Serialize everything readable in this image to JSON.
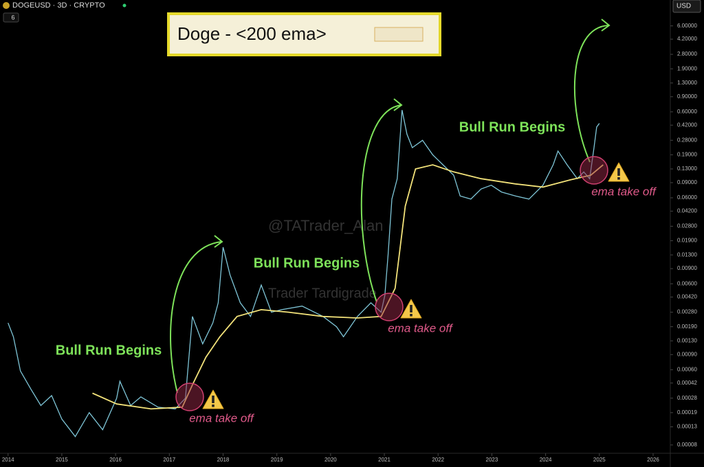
{
  "chart_data": {
    "type": "line",
    "header": "DOGEUSD · 3D · CRYPTO",
    "interval_badge": "6",
    "currency": "USD",
    "title": "Doge - <200 ema>",
    "annotations": [
      "Bull Run Begins",
      "Bull Run Begins",
      "Bull Run Begins",
      "ema take off",
      "ema take off",
      "ema take off"
    ],
    "watermarks": [
      "@TATrader_Alan",
      "Trader Tardigrade"
    ],
    "log_scale": true,
    "xlim": [
      2013.85,
      2026.32
    ],
    "xticks": [
      2014,
      2015,
      2016,
      2017,
      2018,
      2019,
      2020,
      2021,
      2022,
      2023,
      2024,
      2025,
      2026
    ],
    "ylim": [
      6.4e-05,
      12
    ],
    "yticks": [
      {
        "value": 6,
        "label": "6.00000"
      },
      {
        "value": 4.2,
        "label": "4.20000"
      },
      {
        "value": 2.8,
        "label": "2.80000"
      },
      {
        "value": 1.9,
        "label": "1.90000"
      },
      {
        "value": 1.3,
        "label": "1.30000"
      },
      {
        "value": 0.9,
        "label": "0.90000"
      },
      {
        "value": 0.6,
        "label": "0.60000"
      },
      {
        "value": 0.42,
        "label": "0.42000"
      },
      {
        "value": 0.28,
        "label": "0.28000"
      },
      {
        "value": 0.19,
        "label": "0.19000"
      },
      {
        "value": 0.13,
        "label": "0.13000"
      },
      {
        "value": 0.09,
        "label": "0.09000"
      },
      {
        "value": 0.06,
        "label": "0.06000"
      },
      {
        "value": 0.042,
        "label": "0.04200"
      },
      {
        "value": 0.028,
        "label": "0.02800"
      },
      {
        "value": 0.019,
        "label": "0.01900"
      },
      {
        "value": 0.013,
        "label": "0.01300"
      },
      {
        "value": 0.009,
        "label": "0.00900"
      },
      {
        "value": 0.006,
        "label": "0.00600"
      },
      {
        "value": 0.0042,
        "label": "0.00420"
      },
      {
        "value": 0.0028,
        "label": "0.00280"
      },
      {
        "value": 0.0019,
        "label": "0.00190"
      },
      {
        "value": 0.0013,
        "label": "0.00130"
      },
      {
        "value": 0.0009,
        "label": "0.00090"
      },
      {
        "value": 0.0006,
        "label": "0.00060"
      },
      {
        "value": 0.00042,
        "label": "0.00042"
      },
      {
        "value": 0.00028,
        "label": "0.00028"
      },
      {
        "value": 0.00019,
        "label": "0.00019"
      },
      {
        "value": 0.00013,
        "label": "0.00013"
      },
      {
        "value": 8e-05,
        "label": "0.00008"
      }
    ],
    "series": [
      {
        "color": "#7fc6d8",
        "x": [
          2014.0,
          2014.1,
          2014.23,
          2014.42,
          2014.61,
          2014.81,
          2015.0,
          2015.25,
          2015.51,
          2015.76,
          2016.02,
          2016.08,
          2016.28,
          2016.47,
          2016.79,
          2017.11,
          2017.3,
          2017.43,
          2017.62,
          2017.81,
          2017.91,
          2018.0,
          2018.13,
          2018.32,
          2018.51,
          2018.71,
          2018.9,
          2019.09,
          2019.47,
          2019.86,
          2020.11,
          2020.24,
          2020.5,
          2020.75,
          2020.94,
          2021.01,
          2021.07,
          2021.14,
          2021.24,
          2021.33,
          2021.42,
          2021.52,
          2021.71,
          2021.9,
          2022.09,
          2022.29,
          2022.41,
          2022.61,
          2022.8,
          2022.99,
          2023.18,
          2023.44,
          2023.69,
          2023.95,
          2024.14,
          2024.23,
          2024.4,
          2024.59,
          2024.71,
          2024.82,
          2024.9,
          2024.95,
          2025.0
        ],
        "values": [
          0.0021,
          0.00145,
          0.00058,
          0.00036,
          0.00023,
          0.0003,
          0.00016,
          0.0001,
          0.00019,
          0.00012,
          0.00028,
          0.00044,
          0.00023,
          0.00029,
          0.00022,
          0.00021,
          0.00028,
          0.0025,
          0.0012,
          0.0021,
          0.0036,
          0.016,
          0.0076,
          0.0036,
          0.0025,
          0.0058,
          0.0028,
          0.003,
          0.0033,
          0.0025,
          0.0019,
          0.00145,
          0.0025,
          0.0036,
          0.0028,
          0.0044,
          0.013,
          0.058,
          0.1,
          0.63,
          0.33,
          0.23,
          0.28,
          0.19,
          0.145,
          0.11,
          0.063,
          0.058,
          0.076,
          0.084,
          0.07,
          0.063,
          0.058,
          0.084,
          0.145,
          0.21,
          0.145,
          0.1,
          0.12,
          0.1,
          0.23,
          0.4,
          0.44
        ]
      },
      {
        "color": "#f2e27a",
        "x": [
          2015.57,
          2016.02,
          2016.66,
          2017.24,
          2017.43,
          2017.68,
          2017.94,
          2018.26,
          2018.71,
          2019.22,
          2019.86,
          2020.5,
          2020.94,
          2021.2,
          2021.39,
          2021.58,
          2021.9,
          2022.29,
          2022.8,
          2023.44,
          2023.95,
          2024.46,
          2024.84,
          2025.07
        ],
        "values": [
          0.00032,
          0.00024,
          0.00021,
          0.00022,
          0.0004,
          0.00084,
          0.00145,
          0.0025,
          0.003,
          0.0028,
          0.0025,
          0.0024,
          0.0025,
          0.0053,
          0.048,
          0.13,
          0.145,
          0.12,
          0.1,
          0.087,
          0.08,
          0.097,
          0.11,
          0.145
        ]
      }
    ]
  }
}
